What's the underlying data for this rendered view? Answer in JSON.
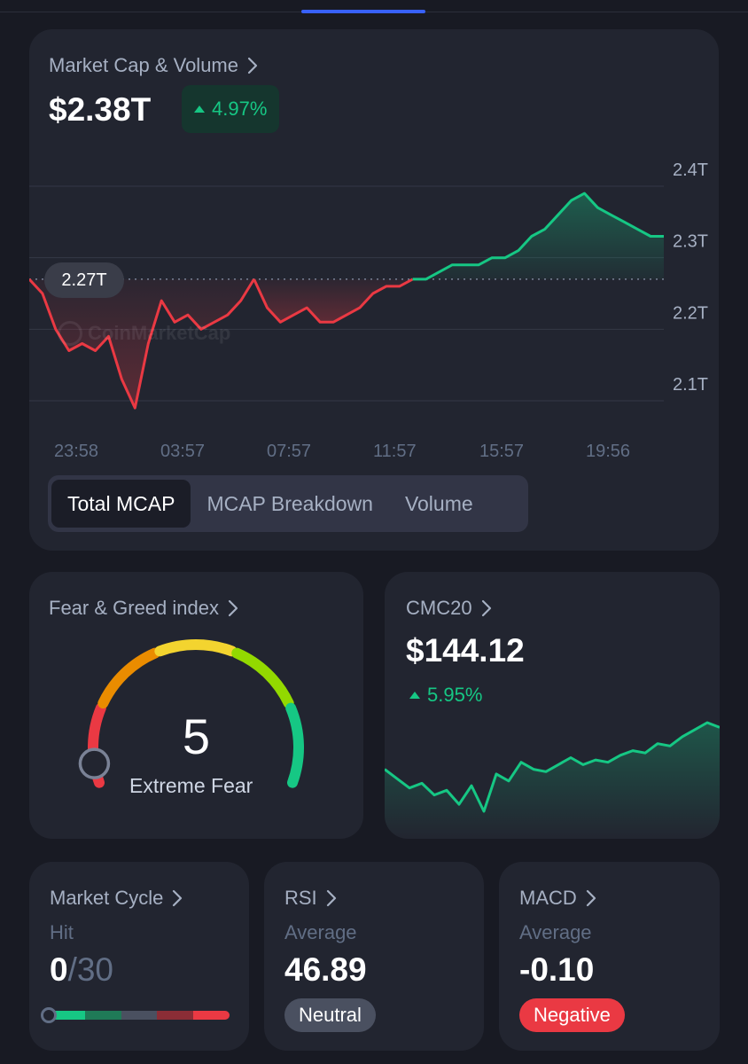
{
  "market_cap": {
    "title": "Market Cap & Volume",
    "value": "$2.38T",
    "change": "4.97%",
    "reference_label": "2.27T",
    "watermark": "CoinMarketCap",
    "tabs": [
      "Total MCAP",
      "MCAP Breakdown",
      "Volume"
    ],
    "active_tab": "Total MCAP"
  },
  "fear_greed": {
    "title": "Fear & Greed index",
    "value": "5",
    "label": "Extreme Fear"
  },
  "cmc20": {
    "title": "CMC20",
    "value": "$144.12",
    "change": "5.95%"
  },
  "market_cycle": {
    "title": "Market Cycle",
    "sublabel": "Hit",
    "hit": "0",
    "total": "/30"
  },
  "rsi": {
    "title": "RSI",
    "sublabel": "Average",
    "value": "46.89",
    "status": "Neutral"
  },
  "macd": {
    "title": "MACD",
    "sublabel": "Average",
    "value": "-0.10",
    "status": "Negative"
  },
  "colors": {
    "up": "#16c784",
    "down": "#ea3943",
    "accent": "#3861fb"
  },
  "chart_data": [
    {
      "type": "area",
      "title": "Market Cap & Volume",
      "reference_value": 2.27,
      "x_ticks": [
        "23:58",
        "03:57",
        "07:57",
        "11:57",
        "15:57",
        "19:56"
      ],
      "y_ticks": [
        "2.4T",
        "2.3T",
        "2.2T",
        "2.1T"
      ],
      "ylim": [
        2.1,
        2.4
      ],
      "x": [
        "23:58",
        "00:30",
        "01:00",
        "01:30",
        "02:00",
        "02:30",
        "03:00",
        "03:20",
        "03:40",
        "03:57",
        "04:20",
        "05:00",
        "05:30",
        "06:00",
        "06:30",
        "07:00",
        "07:30",
        "07:57",
        "08:20",
        "09:00",
        "09:30",
        "10:00",
        "10:30",
        "11:00",
        "11:30",
        "11:57",
        "12:30",
        "13:00",
        "13:30",
        "14:00",
        "14:30",
        "15:00",
        "15:30",
        "15:57",
        "16:30",
        "17:00",
        "17:30",
        "18:00",
        "18:30",
        "19:00",
        "19:30",
        "19:56",
        "20:30",
        "21:00",
        "21:30",
        "22:00",
        "22:30",
        "23:00",
        "23:30"
      ],
      "series": [
        {
          "values": [
            2.27,
            2.25,
            2.2,
            2.17,
            2.18,
            2.17,
            2.19,
            2.13,
            2.09,
            2.18,
            2.24,
            2.21,
            2.22,
            2.2,
            2.21,
            2.22,
            2.24,
            2.27,
            2.23,
            2.21,
            2.22,
            2.23,
            2.21,
            2.21,
            2.22,
            2.23,
            2.25,
            2.26,
            2.26,
            2.27,
            2.27,
            2.28,
            2.29,
            2.29,
            2.29,
            2.3,
            2.3,
            2.31,
            2.33,
            2.34,
            2.36,
            2.38,
            2.39,
            2.37,
            2.36,
            2.35,
            2.34,
            2.33,
            2.33
          ]
        }
      ]
    },
    {
      "type": "line",
      "title": "CMC20",
      "series": [
        {
          "values": [
            142.5,
            142.1,
            141.7,
            141.9,
            141.4,
            141.6,
            141.0,
            141.8,
            140.7,
            142.3,
            142.0,
            142.8,
            142.5,
            142.4,
            142.7,
            143.0,
            142.7,
            142.9,
            142.8,
            143.1,
            143.3,
            143.2,
            143.6,
            143.5,
            143.9,
            144.2,
            144.5,
            144.3
          ]
        }
      ]
    }
  ]
}
